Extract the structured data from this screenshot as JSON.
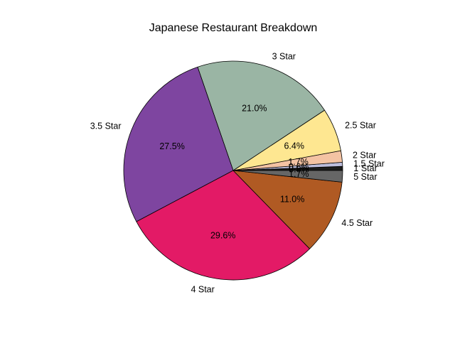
{
  "chart_data": {
    "type": "pie",
    "title": "Japanese Restaurant Breakdown",
    "start_angle_deg": 0,
    "direction": "counterclockwise",
    "slices": [
      {
        "label": "1 Star",
        "value": 0.6,
        "pct_text": "0.6%",
        "color": "#1c1c1c"
      },
      {
        "label": "1.5 Star",
        "value": 0.6,
        "pct_text": "0.6%",
        "color": "#bcbddc"
      },
      {
        "label": "2 Star",
        "value": 1.7,
        "pct_text": "1.7%",
        "color": "#f4c3a3"
      },
      {
        "label": "2.5 Star",
        "value": 6.4,
        "pct_text": "6.4%",
        "color": "#fee791"
      },
      {
        "label": "3 Star",
        "value": 21.0,
        "pct_text": "21.0%",
        "color": "#9ab5a4"
      },
      {
        "label": "3.5 Star",
        "value": 27.5,
        "pct_text": "27.5%",
        "color": "#7e45a0"
      },
      {
        "label": "4 Star",
        "value": 29.6,
        "pct_text": "29.6%",
        "color": "#e31a66"
      },
      {
        "label": "4.5 Star",
        "value": 11.0,
        "pct_text": "11.0%",
        "color": "#b05a23"
      },
      {
        "label": "5 Star",
        "value": 1.7,
        "pct_text": "1.7%",
        "color": "#666666"
      }
    ]
  }
}
